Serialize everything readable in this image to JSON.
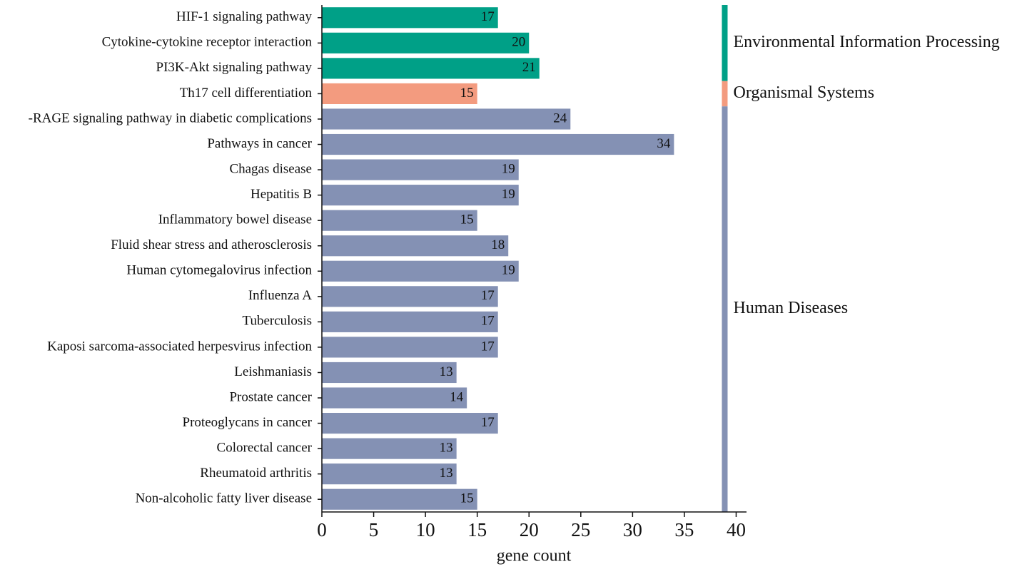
{
  "chart_data": {
    "type": "barh",
    "x_label": "gene count",
    "categories": [
      "HIF-1 signaling pathway",
      "Cytokine-cytokine receptor interaction",
      "PI3K-Akt signaling pathway",
      "Th17 cell differentiation",
      "-RAGE signaling pathway in diabetic complications",
      "Pathways in cancer",
      "Chagas disease",
      "Hepatitis B",
      "Inflammatory bowel disease",
      "Fluid shear stress and atherosclerosis",
      "Human cytomegalovirus infection",
      "Influenza A",
      "Tuberculosis",
      "Kaposi sarcoma-associated herpesvirus infection",
      "Leishmaniasis",
      "Prostate cancer",
      "Proteoglycans in cancer",
      "Colorectal cancer",
      "Rheumatoid arthritis",
      "Non-alcoholic fatty liver disease"
    ],
    "series": [
      {
        "name": "Environmental Information Processing",
        "color": "#00a087",
        "values": [
          17,
          20,
          21,
          null,
          null,
          null,
          null,
          null,
          null,
          null,
          null,
          null,
          null,
          null,
          null,
          null,
          null,
          null,
          null,
          null
        ]
      },
      {
        "name": "Organismal Systems",
        "color": "#f39b7f",
        "values": [
          null,
          null,
          null,
          15,
          null,
          null,
          null,
          null,
          null,
          null,
          null,
          null,
          null,
          null,
          null,
          null,
          null,
          null,
          null,
          null
        ]
      },
      {
        "name": "Human Diseases",
        "color": "#8491b4",
        "values": [
          null,
          null,
          null,
          null,
          24,
          34,
          19,
          19,
          15,
          18,
          19,
          17,
          17,
          17,
          13,
          14,
          17,
          13,
          13,
          15
        ]
      }
    ],
    "xlim": [
      0,
      41
    ],
    "xticks": [
      0,
      5,
      10,
      15,
      20,
      25,
      30,
      35,
      40
    ]
  }
}
